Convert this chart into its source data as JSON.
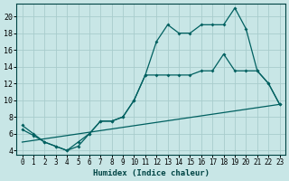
{
  "xlabel": "Humidex (Indice chaleur)",
  "background_color": "#c8e6e6",
  "grid_color": "#a8cccc",
  "line_color": "#006060",
  "xlim": [
    -0.5,
    23.5
  ],
  "ylim": [
    3.5,
    21.5
  ],
  "xtick_labels": [
    "0",
    "1",
    "2",
    "3",
    "4",
    "5",
    "6",
    "7",
    "8",
    "9",
    "10",
    "11",
    "12",
    "13",
    "14",
    "15",
    "16",
    "17",
    "18",
    "19",
    "20",
    "21",
    "22",
    "23"
  ],
  "xticks": [
    0,
    1,
    2,
    3,
    4,
    5,
    6,
    7,
    8,
    9,
    10,
    11,
    12,
    13,
    14,
    15,
    16,
    17,
    18,
    19,
    20,
    21,
    22,
    23
  ],
  "yticks": [
    4,
    6,
    8,
    10,
    12,
    14,
    16,
    18,
    20
  ],
  "line1_x": [
    0,
    1,
    2,
    3,
    4,
    5,
    6,
    7,
    8,
    9,
    10,
    11,
    12,
    13,
    14,
    15,
    16,
    17,
    18,
    19,
    20,
    21,
    22,
    23
  ],
  "line1_y": [
    7.0,
    6.0,
    5.0,
    4.5,
    4.0,
    4.5,
    6.0,
    7.5,
    7.5,
    8.0,
    10.0,
    13.0,
    17.0,
    19.0,
    18.0,
    18.0,
    19.0,
    19.0,
    19.0,
    21.0,
    18.5,
    13.5,
    12.0,
    9.5
  ],
  "line2_x": [
    0,
    1,
    2,
    3,
    4,
    5,
    6,
    7,
    8,
    9,
    10,
    11,
    12,
    13,
    14,
    15,
    16,
    17,
    18,
    19,
    20,
    21,
    22,
    23
  ],
  "line2_y": [
    6.5,
    5.8,
    5.0,
    4.5,
    4.0,
    5.0,
    6.0,
    7.5,
    7.5,
    8.0,
    10.0,
    13.0,
    13.0,
    13.0,
    13.0,
    13.0,
    13.5,
    13.5,
    15.5,
    13.5,
    13.5,
    13.5,
    12.0,
    9.5
  ],
  "line3_x": [
    0,
    23
  ],
  "line3_y": [
    5.0,
    9.5
  ]
}
